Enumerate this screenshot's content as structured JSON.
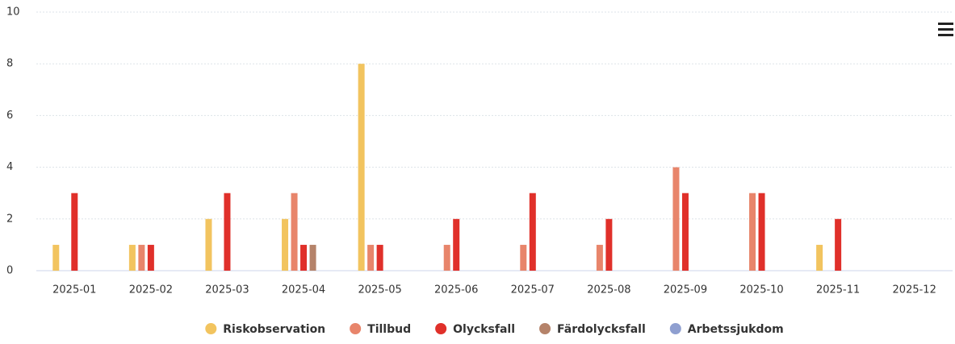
{
  "chart_data": {
    "type": "bar",
    "categories": [
      "2025-01",
      "2025-02",
      "2025-03",
      "2025-04",
      "2025-05",
      "2025-06",
      "2025-07",
      "2025-08",
      "2025-09",
      "2025-10",
      "2025-11",
      "2025-12"
    ],
    "series": [
      {
        "name": "Riskobservation",
        "color": "#f2c45f",
        "values": [
          1,
          1,
          2,
          2,
          8,
          0,
          0,
          0,
          0,
          0,
          1,
          0
        ]
      },
      {
        "name": "Tillbud",
        "color": "#e8856b",
        "values": [
          0,
          1,
          0,
          3,
          1,
          1,
          1,
          1,
          4,
          3,
          0,
          0
        ]
      },
      {
        "name": "Olycksfall",
        "color": "#e0302a",
        "values": [
          3,
          1,
          3,
          1,
          1,
          2,
          3,
          2,
          3,
          3,
          2,
          0
        ]
      },
      {
        "name": "Färdolycksfall",
        "color": "#b5836a",
        "values": [
          0,
          0,
          0,
          1,
          0,
          0,
          0,
          0,
          0,
          0,
          0,
          0
        ]
      },
      {
        "name": "Arbetssjukdom",
        "color": "#8f9fd0",
        "values": [
          0,
          0,
          0,
          0,
          0,
          0,
          0,
          0,
          0,
          0,
          0,
          0
        ]
      }
    ],
    "ylim": [
      0,
      10
    ],
    "yticks": [
      0,
      2,
      4,
      6,
      8,
      10
    ],
    "grid": true,
    "legend": "bottom"
  }
}
